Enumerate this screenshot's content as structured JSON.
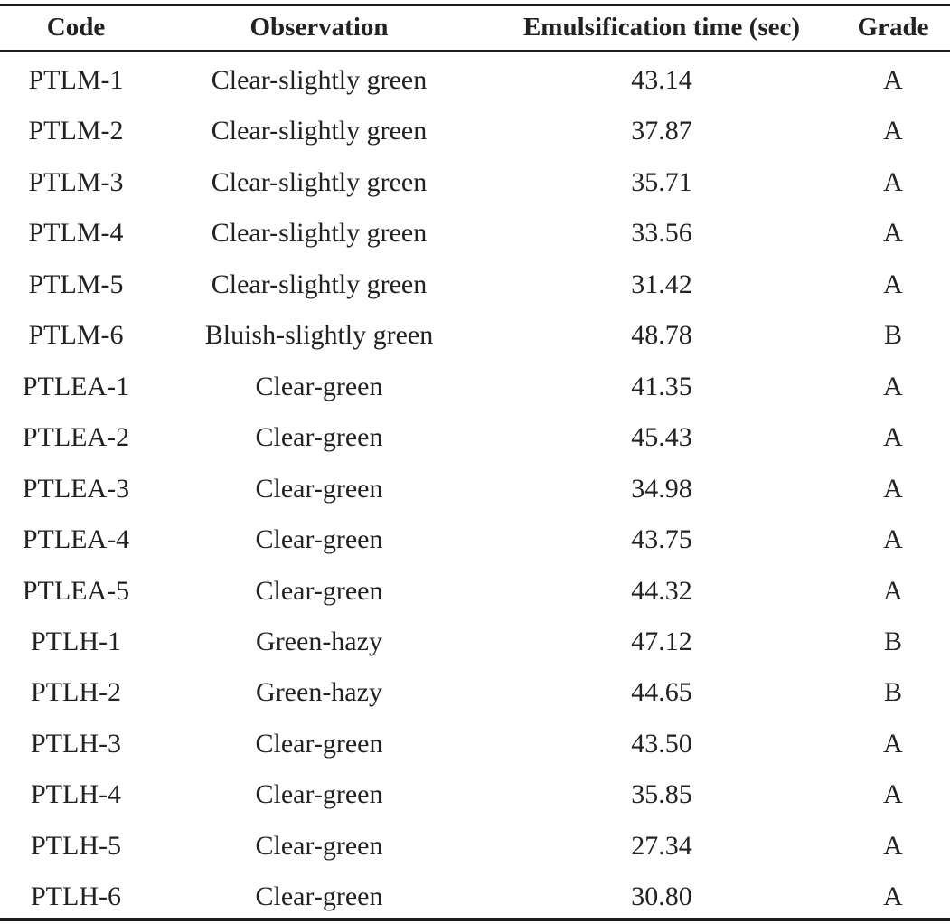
{
  "table": {
    "headers": {
      "code": "Code",
      "observation": "Observation",
      "time": "Emulsification time (sec)",
      "grade": "Grade"
    },
    "rows": [
      {
        "code": "PTLM-1",
        "observation": "Clear-slightly green",
        "time": "43.14",
        "grade": "A"
      },
      {
        "code": "PTLM-2",
        "observation": "Clear-slightly green",
        "time": "37.87",
        "grade": "A"
      },
      {
        "code": "PTLM-3",
        "observation": "Clear-slightly green",
        "time": "35.71",
        "grade": "A"
      },
      {
        "code": "PTLM-4",
        "observation": "Clear-slightly green",
        "time": "33.56",
        "grade": "A"
      },
      {
        "code": "PTLM-5",
        "observation": "Clear-slightly green",
        "time": "31.42",
        "grade": "A"
      },
      {
        "code": "PTLM-6",
        "observation": "Bluish-slightly green",
        "time": "48.78",
        "grade": "B"
      },
      {
        "code": "PTLEA-1",
        "observation": "Clear-green",
        "time": "41.35",
        "grade": "A"
      },
      {
        "code": "PTLEA-2",
        "observation": "Clear-green",
        "time": "45.43",
        "grade": "A"
      },
      {
        "code": "PTLEA-3",
        "observation": "Clear-green",
        "time": "34.98",
        "grade": "A"
      },
      {
        "code": "PTLEA-4",
        "observation": "Clear-green",
        "time": "43.75",
        "grade": "A"
      },
      {
        "code": "PTLEA-5",
        "observation": "Clear-green",
        "time": "44.32",
        "grade": "A"
      },
      {
        "code": "PTLH-1",
        "observation": "Green-hazy",
        "time": "47.12",
        "grade": "B"
      },
      {
        "code": "PTLH-2",
        "observation": "Green-hazy",
        "time": "44.65",
        "grade": "B"
      },
      {
        "code": "PTLH-3",
        "observation": "Clear-green",
        "time": "43.50",
        "grade": "A"
      },
      {
        "code": "PTLH-4",
        "observation": "Clear-green",
        "time": "35.85",
        "grade": "A"
      },
      {
        "code": "PTLH-5",
        "observation": "Clear-green",
        "time": "27.34",
        "grade": "A"
      },
      {
        "code": "PTLH-6",
        "observation": "Clear-green",
        "time": "30.80",
        "grade": "A"
      }
    ]
  }
}
